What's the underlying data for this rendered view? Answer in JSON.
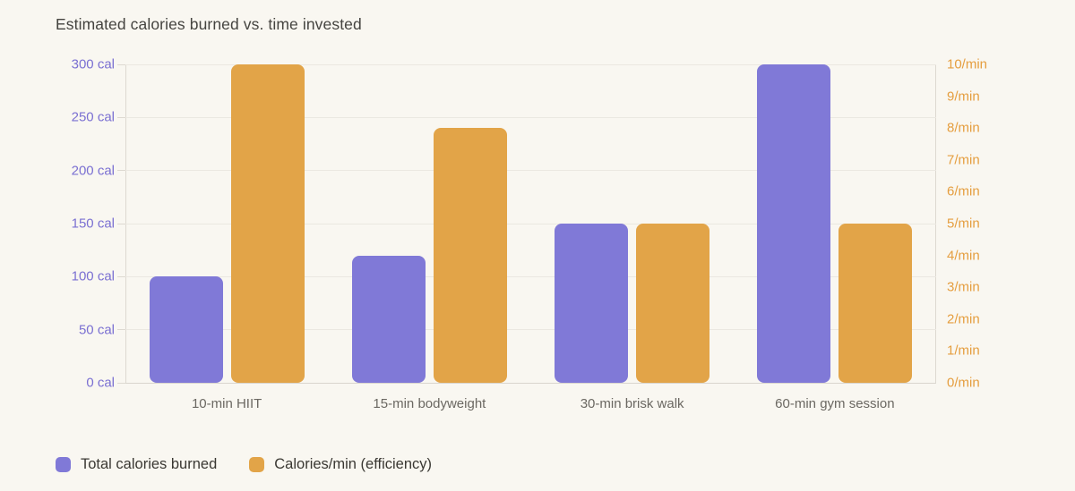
{
  "title": "Estimated calories burned vs. time invested",
  "colors": {
    "background": "#f9f7f1",
    "series_calories": "#8079d7",
    "series_efficiency": "#e2a448",
    "left_axis_label": "#7b70d2",
    "right_axis_label": "#e59e3f",
    "title_text": "#454440",
    "category_text": "#6b6862",
    "legend_text": "#3a3833",
    "gridline": "#ebe8e1",
    "axis_line": "#ddd9d1"
  },
  "chart_data": {
    "type": "bar",
    "title": "Estimated calories burned vs. time invested",
    "categories": [
      "10-min HIIT",
      "15-min bodyweight",
      "30-min brisk walk",
      "60-min gym session"
    ],
    "series": [
      {
        "name": "Total calories burned",
        "axis": "left",
        "color_key": "series_calories",
        "values": [
          100,
          120,
          150,
          300
        ]
      },
      {
        "name": "Calories/min (efficiency)",
        "axis": "right",
        "color_key": "series_efficiency",
        "values": [
          10,
          8,
          5,
          5
        ]
      }
    ],
    "left_axis": {
      "min": 0,
      "max": 300,
      "step": 50,
      "tick_labels": [
        "0 cal",
        "50 cal",
        "100 cal",
        "150 cal",
        "200 cal",
        "250 cal",
        "300 cal"
      ]
    },
    "right_axis": {
      "min": 0,
      "max": 10,
      "step": 1,
      "tick_labels": [
        "0/min",
        "1/min",
        "2/min",
        "3/min",
        "4/min",
        "5/min",
        "6/min",
        "7/min",
        "8/min",
        "9/min",
        "10/min"
      ]
    },
    "grid": "horizontal",
    "legend_position": "bottom-left",
    "legend": [
      {
        "label": "Total calories burned",
        "color_key": "series_calories"
      },
      {
        "label": "Calories/min (efficiency)",
        "color_key": "series_efficiency"
      }
    ]
  }
}
